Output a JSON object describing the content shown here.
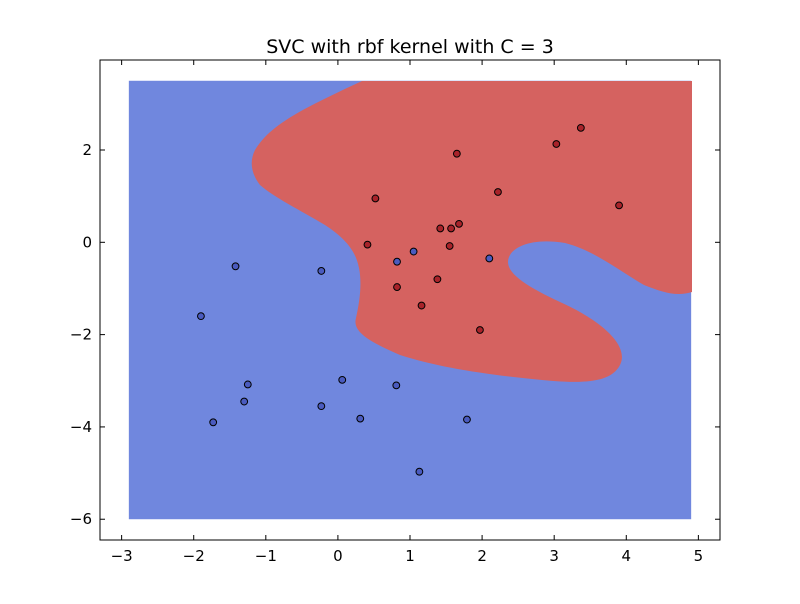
{
  "chart_data": {
    "type": "scatter",
    "title": "SVC with rbf kernel with C = 3",
    "xlabel": "",
    "ylabel": "",
    "xlim": [
      -3.3,
      5.3
    ],
    "ylim": [
      -6.45,
      3.95
    ],
    "xticks": [
      -3,
      -2,
      -1,
      0,
      1,
      2,
      3,
      4,
      5
    ],
    "yticks": [
      -6,
      -4,
      -2,
      0,
      2
    ],
    "xtick_labels": [
      "−3",
      "−2",
      "−1",
      "0",
      "1",
      "2",
      "3",
      "4",
      "5"
    ],
    "ytick_labels": [
      "−6",
      "−4",
      "−2",
      "0",
      "2"
    ],
    "grid": false,
    "legend": "none",
    "decision_region": {
      "x_range": [
        -2.9,
        4.9
      ],
      "y_range": [
        -6.0,
        3.5
      ],
      "class0_color": "#7087de",
      "class1_color": "#d56260"
    },
    "series": [
      {
        "class": 0,
        "color": "#4a5bbf",
        "points": [
          [
            -1.42,
            -0.52
          ],
          [
            -0.23,
            -0.62
          ],
          [
            -1.9,
            -1.6
          ],
          [
            -1.25,
            -3.08
          ],
          [
            -1.3,
            -3.45
          ],
          [
            -1.73,
            -3.9
          ],
          [
            0.06,
            -2.98
          ],
          [
            -0.23,
            -3.55
          ],
          [
            0.31,
            -3.82
          ],
          [
            0.81,
            -3.1
          ],
          [
            1.79,
            -3.84
          ],
          [
            1.13,
            -4.97
          ],
          [
            0.82,
            -0.42
          ],
          [
            1.05,
            -0.2
          ],
          [
            2.1,
            -0.35
          ]
        ]
      },
      {
        "class": 1,
        "color": "#a8232a",
        "points": [
          [
            1.65,
            1.92
          ],
          [
            3.37,
            2.48
          ],
          [
            3.03,
            2.13
          ],
          [
            0.52,
            0.95
          ],
          [
            2.22,
            1.09
          ],
          [
            3.9,
            0.8
          ],
          [
            1.42,
            0.3
          ],
          [
            1.57,
            0.3
          ],
          [
            1.68,
            0.4
          ],
          [
            0.41,
            -0.05
          ],
          [
            1.55,
            -0.08
          ],
          [
            1.38,
            -0.8
          ],
          [
            0.82,
            -0.97
          ],
          [
            1.16,
            -1.37
          ],
          [
            1.97,
            -1.9
          ]
        ]
      }
    ]
  }
}
